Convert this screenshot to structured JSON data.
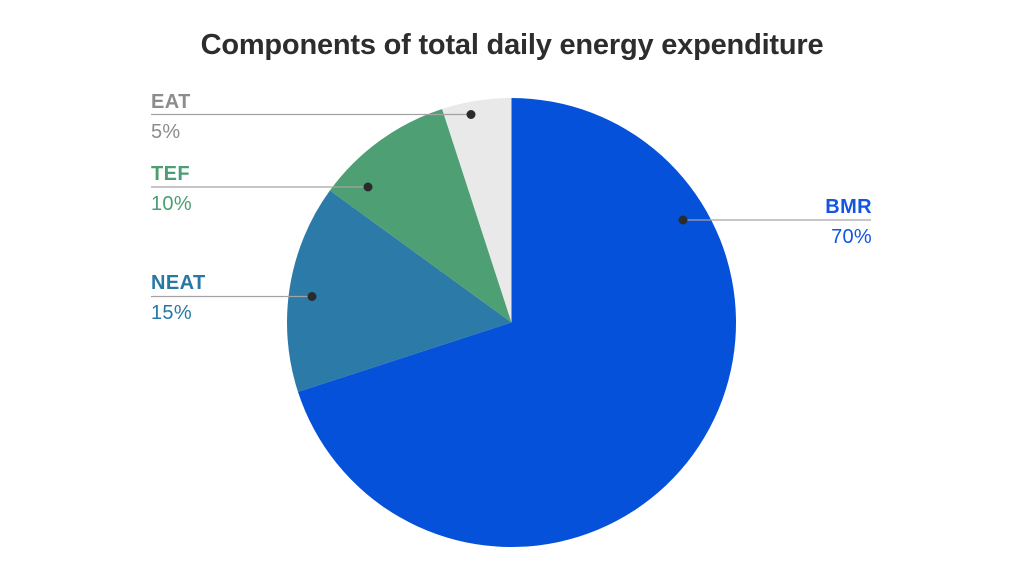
{
  "chart_data": {
    "type": "pie",
    "title": "Components of total daily energy expenditure",
    "slices": [
      {
        "label": "BMR",
        "value": 70,
        "pct_label": "70%",
        "color": "#0551da",
        "label_color": "#1155e0"
      },
      {
        "label": "NEAT",
        "value": 15,
        "pct_label": "15%",
        "color": "#2b7aa7",
        "label_color": "#2878a6"
      },
      {
        "label": "TEF",
        "value": 10,
        "pct_label": "10%",
        "color": "#4f9f75",
        "label_color": "#4a9e71"
      },
      {
        "label": "EAT",
        "value": 5,
        "pct_label": "5%",
        "color": "#e9e9e9",
        "label_color": "#8c8c8c"
      }
    ],
    "start_angle_deg": 0,
    "direction": "clockwise",
    "legend_position": "none",
    "background": "#ffffff",
    "leader_line_color": "#a3a3a3",
    "dot_color": "#2b2b2b"
  }
}
